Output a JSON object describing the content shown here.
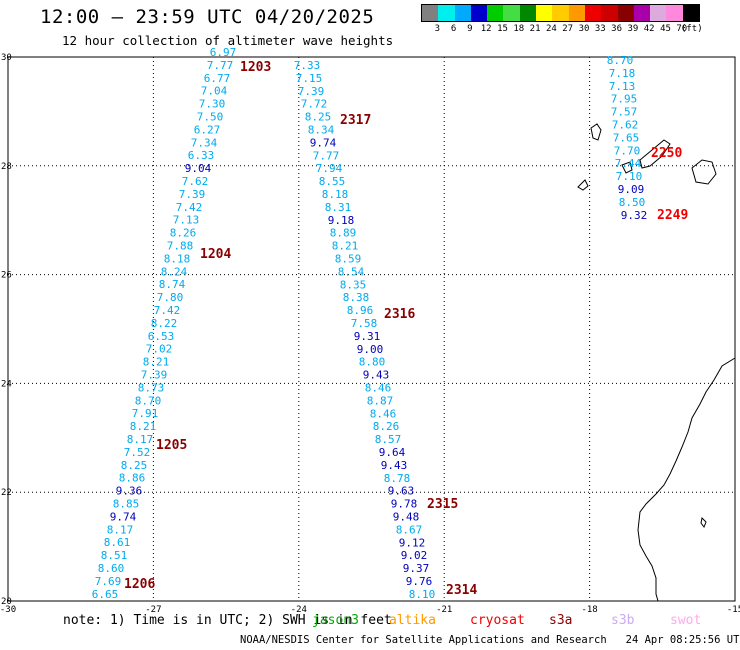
{
  "header": {
    "title": "12:00 — 23:59 UTC 04/20/2025",
    "subtitle": "12 hour collection of altimeter wave heights"
  },
  "legend": {
    "colors": [
      "#808080",
      "#00eeee",
      "#00aaff",
      "#0000cc",
      "#00cc00",
      "#44dd44",
      "#008800",
      "#ffff00",
      "#ffcc00",
      "#ff9900",
      "#ee0000",
      "#cc0000",
      "#880000",
      "#aa00aa",
      "#ddaadd",
      "#ff88dd",
      "#000000"
    ],
    "labels": [
      "3",
      "6",
      "9",
      "12",
      "15",
      "18",
      "21",
      "24",
      "27",
      "30",
      "33",
      "36",
      "39",
      "42",
      "45",
      "70",
      "(ft)"
    ]
  },
  "map": {
    "lon_range": [
      -30,
      -15
    ],
    "lat_range": [
      20,
      30
    ],
    "x_ticks": [
      "-30",
      "-27",
      "-24",
      "-21",
      "-18",
      "-15"
    ],
    "y_ticks": [
      "30",
      "28",
      "26",
      "24",
      "22",
      "20"
    ],
    "land_color": "#000000",
    "grid_style": "dotted",
    "wave_colors": {
      "light": "#00aaee",
      "dark": "#0000bb"
    },
    "pass_colors": {
      "brown": "#880000",
      "red": "#ee0000"
    },
    "passes": [
      {
        "id": "1203",
        "color": "brown",
        "values": [
          "6.97",
          "7.77",
          "6.77",
          "7.04",
          "7.30",
          "7.50",
          "6.27",
          "7.34",
          "6.33",
          "9.04",
          "7.62",
          "7.39",
          "7.42",
          "7.13",
          "8.26",
          "7.88",
          "8.18",
          "8.24",
          "8.74",
          "7.80",
          "7.42",
          "8.22",
          "6.53",
          "7.02",
          "8.21",
          "7.39",
          "8.73",
          "8.70",
          "7.91",
          "8.21",
          "8.17",
          "7.52",
          "8.25",
          "8.86",
          "9.36",
          "8.85",
          "9.74",
          "8.17",
          "8.61",
          "8.51",
          "8.60",
          "7.69",
          "6.65"
        ]
      },
      {
        "id": "2317",
        "color": "brown",
        "values": [
          "7.33",
          "7.15",
          "7.39",
          "7.72",
          "8.25",
          "8.34",
          "9.74",
          "7.77",
          "7.94",
          "8.55",
          "8.18",
          "8.31",
          "9.18",
          "8.89",
          "8.21",
          "8.59",
          "8.54",
          "8.35",
          "8.38",
          "8.96",
          "7.58",
          "9.31",
          "9.00",
          "8.80",
          "9.43",
          "8.46",
          "8.87",
          "8.46",
          "8.26",
          "8.57",
          "9.64",
          "9.43",
          "8.78",
          "9.63",
          "9.78",
          "9.48",
          "8.67",
          "9.12",
          "9.02",
          "9.37",
          "9.76",
          "8.10"
        ]
      },
      {
        "id": "2250",
        "color": "red",
        "values": [
          "8.70",
          "7.18",
          "7.13",
          "7.95",
          "7.57",
          "7.62",
          "7.65",
          "7.70",
          "7.44",
          "7.10",
          "9.09",
          "8.50",
          "9.32"
        ]
      }
    ],
    "pass_labels": [
      "1203",
      "1204",
      "1205",
      "1206",
      "2317",
      "2316",
      "2315",
      "2314",
      "2250",
      "2249"
    ]
  },
  "notes": {
    "text": "note:  1) Time is in UTC;  2) SWH is in feet"
  },
  "satellites": [
    {
      "name": "jason3",
      "color": "#00aa00"
    },
    {
      "name": "altika",
      "color": "#ff9900"
    },
    {
      "name": "cryosat",
      "color": "#ee0000"
    },
    {
      "name": "s3a",
      "color": "#880000"
    },
    {
      "name": "s3b",
      "color": "#ccaaee"
    },
    {
      "name": "swot",
      "color": "#ffaaee"
    }
  ],
  "footer": {
    "credit": "NOAA/NESDIS Center for Satellite Applications and Research",
    "timestamp": "24 Apr 08:25:56 UTC 2025"
  }
}
